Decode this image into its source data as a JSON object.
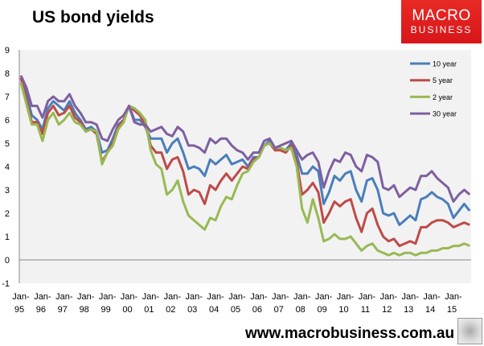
{
  "header": {
    "title": "US bond yields",
    "logo_line1": "MACRO",
    "logo_line2": "BUSINESS"
  },
  "footer": {
    "url": "www.macrobusiness.com.au",
    "wolf_logo": "wolf-logo-icon"
  },
  "chart_data": {
    "type": "line",
    "title": "US bond yields",
    "xlabel": "",
    "ylabel": "",
    "ylim": [
      -1,
      9
    ],
    "yticks": [
      "-1",
      "0",
      "1",
      "2",
      "3",
      "4",
      "5",
      "6",
      "7",
      "8",
      "9"
    ],
    "xticks": [
      [
        "Jan-",
        "95"
      ],
      [
        "Jan-",
        "96"
      ],
      [
        "Jan-",
        "97"
      ],
      [
        "Jan-",
        "98"
      ],
      [
        "Jan-",
        "99"
      ],
      [
        "Jan-",
        "00"
      ],
      [
        "Jan-",
        "01"
      ],
      [
        "Jan-",
        "02"
      ],
      [
        "Jan-",
        "03"
      ],
      [
        "Jan-",
        "04"
      ],
      [
        "Jan-",
        "05"
      ],
      [
        "Jan-",
        "06"
      ],
      [
        "Jan-",
        "07"
      ],
      [
        "Jan-",
        "08"
      ],
      [
        "Jan-",
        "09"
      ],
      [
        "Jan-",
        "10"
      ],
      [
        "Jan-",
        "11"
      ],
      [
        "Jan-",
        "12"
      ],
      [
        "Jan-",
        "13"
      ],
      [
        "Jan-",
        "14"
      ],
      [
        "Jan-",
        "15"
      ]
    ],
    "x_start_year": 1995,
    "x_step_years": 0.25,
    "legend_position": "top-right",
    "series": [
      {
        "name": "10 year",
        "color": "#4a7ebb",
        "values": [
          7.8,
          7.1,
          6.2,
          6.0,
          5.6,
          6.5,
          6.8,
          6.6,
          6.4,
          6.8,
          6.3,
          6.0,
          5.6,
          5.7,
          5.5,
          4.6,
          4.7,
          5.2,
          5.8,
          6.0,
          6.6,
          6.0,
          6.0,
          5.7,
          5.2,
          5.2,
          5.2,
          4.6,
          5.0,
          5.2,
          4.6,
          3.9,
          4.0,
          3.9,
          3.6,
          4.3,
          4.1,
          4.3,
          4.5,
          4.1,
          4.2,
          4.3,
          4.0,
          4.4,
          4.4,
          4.9,
          5.1,
          4.7,
          4.8,
          4.7,
          5.0,
          4.5,
          3.7,
          3.7,
          4.0,
          3.8,
          2.4,
          2.9,
          3.6,
          3.4,
          3.7,
          3.8,
          3.0,
          2.5,
          3.4,
          3.5,
          3.0,
          2.0,
          1.9,
          2.0,
          1.5,
          1.7,
          1.9,
          1.7,
          2.6,
          2.7,
          2.9,
          2.7,
          2.6,
          2.4,
          1.8,
          2.1,
          2.4,
          2.1
        ]
      },
      {
        "name": "5 year",
        "color": "#be4b48",
        "values": [
          7.8,
          6.9,
          5.9,
          5.9,
          5.4,
          6.3,
          6.6,
          6.2,
          6.3,
          6.6,
          6.1,
          5.9,
          5.5,
          5.6,
          5.4,
          4.2,
          4.6,
          5.0,
          5.7,
          6.0,
          6.6,
          6.4,
          6.2,
          5.8,
          4.9,
          4.6,
          4.6,
          3.9,
          4.3,
          4.4,
          3.8,
          2.8,
          3.0,
          2.9,
          2.4,
          3.2,
          3.0,
          3.4,
          3.7,
          3.4,
          3.7,
          4.0,
          3.9,
          4.3,
          4.4,
          4.9,
          5.0,
          4.7,
          4.7,
          4.6,
          4.9,
          4.2,
          2.8,
          3.0,
          3.3,
          2.9,
          1.6,
          2.0,
          2.5,
          2.3,
          2.5,
          2.6,
          1.8,
          1.2,
          2.0,
          2.2,
          1.5,
          1.0,
          0.8,
          0.9,
          0.6,
          0.7,
          0.8,
          0.7,
          1.4,
          1.4,
          1.6,
          1.7,
          1.7,
          1.6,
          1.4,
          1.5,
          1.6,
          1.5
        ]
      },
      {
        "name": "2 year",
        "color": "#98b954",
        "values": [
          7.6,
          6.7,
          5.8,
          5.8,
          5.1,
          6.0,
          6.3,
          5.8,
          6.0,
          6.3,
          5.9,
          5.8,
          5.5,
          5.6,
          5.5,
          4.1,
          4.6,
          4.9,
          5.6,
          5.9,
          6.6,
          6.5,
          6.3,
          6.0,
          4.7,
          4.1,
          3.9,
          2.8,
          3.0,
          3.4,
          2.5,
          1.9,
          1.7,
          1.5,
          1.3,
          1.8,
          1.7,
          2.3,
          2.7,
          2.6,
          3.2,
          3.7,
          3.8,
          4.2,
          4.4,
          4.9,
          5.0,
          4.8,
          4.8,
          4.7,
          4.8,
          4.0,
          2.2,
          1.6,
          2.6,
          1.8,
          0.8,
          0.9,
          1.1,
          0.9,
          0.9,
          1.0,
          0.7,
          0.4,
          0.6,
          0.7,
          0.4,
          0.3,
          0.2,
          0.3,
          0.2,
          0.3,
          0.3,
          0.2,
          0.3,
          0.3,
          0.4,
          0.4,
          0.5,
          0.5,
          0.6,
          0.6,
          0.7,
          0.6
        ]
      },
      {
        "name": "30 year",
        "color": "#7d60a0",
        "values": [
          7.9,
          7.4,
          6.6,
          6.6,
          6.1,
          6.8,
          7.0,
          6.8,
          6.8,
          7.1,
          6.6,
          6.3,
          5.9,
          5.9,
          5.8,
          5.2,
          5.1,
          5.6,
          6.0,
          6.2,
          6.6,
          5.9,
          5.8,
          5.8,
          5.5,
          5.6,
          5.7,
          5.4,
          5.3,
          5.7,
          5.5,
          4.9,
          4.9,
          4.8,
          4.6,
          5.2,
          5.0,
          5.2,
          5.2,
          4.9,
          4.7,
          4.6,
          4.3,
          4.6,
          4.6,
          5.1,
          5.2,
          4.8,
          4.9,
          5.0,
          5.1,
          4.7,
          4.3,
          4.5,
          4.6,
          4.2,
          3.1,
          3.8,
          4.3,
          4.2,
          4.6,
          4.5,
          4.0,
          3.8,
          4.5,
          4.4,
          4.2,
          3.1,
          3.0,
          3.2,
          2.7,
          2.9,
          3.1,
          3.0,
          3.6,
          3.6,
          3.8,
          3.5,
          3.3,
          3.1,
          2.5,
          2.8,
          3.0,
          2.8
        ]
      }
    ]
  }
}
